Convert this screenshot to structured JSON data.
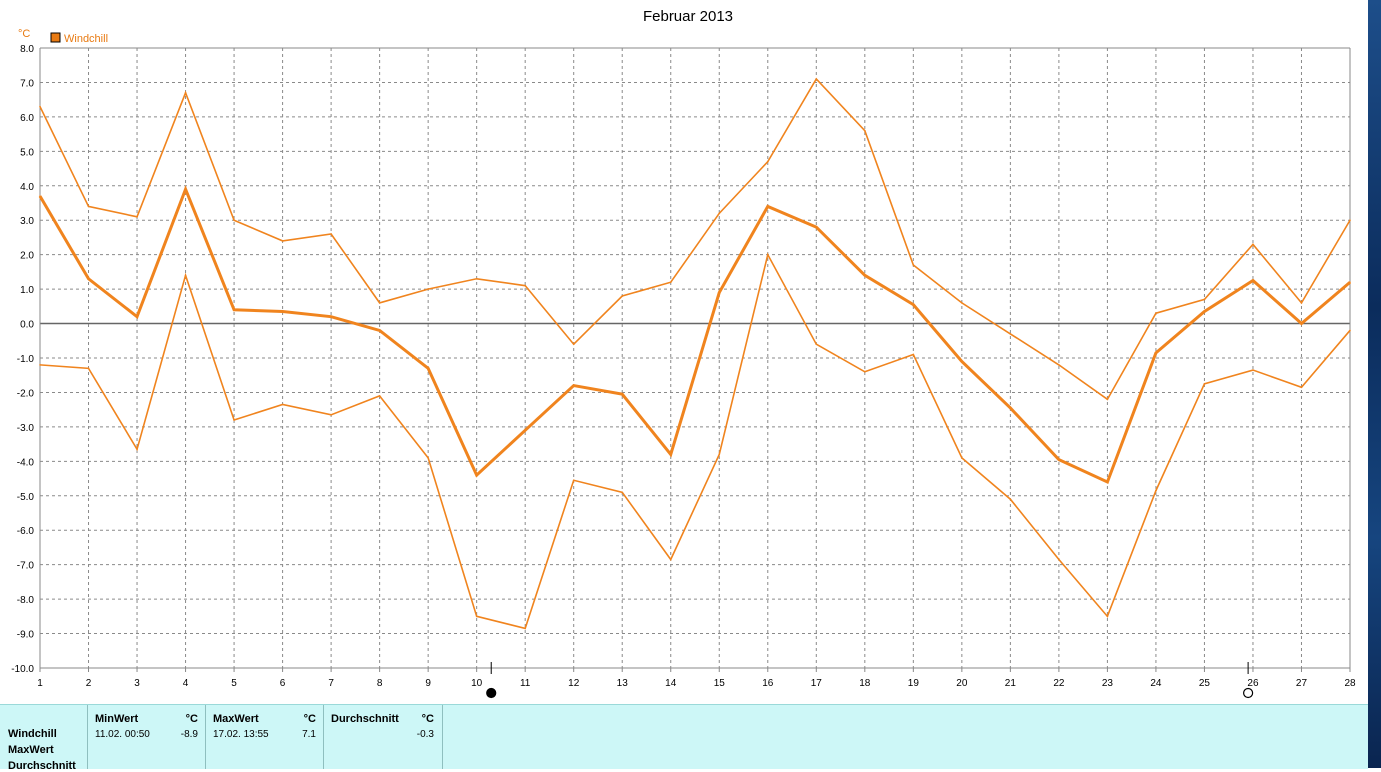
{
  "chart_data": {
    "type": "line",
    "title": "Februar 2013",
    "ylabel": "°C",
    "xlabel": "",
    "ylim": [
      -10.0,
      8.0
    ],
    "yticks": [
      "8.0",
      "7.0",
      "6.0",
      "5.0",
      "4.0",
      "3.0",
      "2.0",
      "1.0",
      "0.0",
      "-1.0",
      "-2.0",
      "-3.0",
      "-4.0",
      "-5.0",
      "-6.0",
      "-7.0",
      "-8.0",
      "-9.0",
      "-10.0"
    ],
    "x": [
      1,
      2,
      3,
      4,
      5,
      6,
      7,
      8,
      9,
      10,
      11,
      12,
      13,
      14,
      15,
      16,
      17,
      18,
      19,
      20,
      21,
      22,
      23,
      24,
      25,
      26,
      27,
      28
    ],
    "legend": "Windchill",
    "legend_position": "top-left",
    "grid": true,
    "series": [
      {
        "role": "max",
        "values": [
          6.3,
          3.4,
          3.1,
          6.7,
          3.0,
          2.4,
          2.6,
          0.6,
          1.0,
          1.3,
          1.1,
          -0.6,
          0.8,
          1.2,
          3.2,
          4.7,
          7.1,
          5.6,
          1.7,
          0.6,
          -0.3,
          -1.2,
          -2.2,
          0.3,
          0.7,
          2.3,
          0.6,
          3.0
        ]
      },
      {
        "role": "avg",
        "values": [
          3.7,
          1.3,
          0.2,
          3.9,
          0.4,
          0.35,
          0.2,
          -0.2,
          -1.3,
          -4.4,
          -3.1,
          -1.8,
          -2.05,
          -3.8,
          0.9,
          3.4,
          2.8,
          1.4,
          0.55,
          -1.1,
          -2.45,
          -3.95,
          -4.6,
          -0.85,
          0.35,
          1.25,
          0.0,
          1.2
        ]
      },
      {
        "role": "min",
        "values": [
          -1.2,
          -1.3,
          -3.65,
          1.4,
          -2.8,
          -2.35,
          -2.65,
          -2.1,
          -3.9,
          -8.5,
          -8.85,
          -4.55,
          -4.9,
          -6.85,
          -3.8,
          2.0,
          -0.6,
          -1.4,
          -0.9,
          -3.9,
          -5.1,
          -6.85,
          -8.5,
          -4.85,
          -1.75,
          -1.35,
          -1.85,
          -0.2
        ]
      }
    ],
    "markers": [
      {
        "symbol": "new-moon",
        "x": 10.3
      },
      {
        "symbol": "full-moon",
        "x": 25.9
      }
    ]
  },
  "stats": {
    "rows": [
      "Windchill",
      "MaxWert",
      "Durchschnitt"
    ],
    "min": {
      "label": "MinWert",
      "unit": "°C",
      "datetime": "11.02.  00:50",
      "value": "-8.9"
    },
    "max": {
      "label": "MaxWert",
      "unit": "°C",
      "datetime": "17.02.  13:55",
      "value": "7.1"
    },
    "avg": {
      "label": "Durchschnitt",
      "unit": "°C",
      "value": "-0.3"
    }
  },
  "colors": {
    "series": "#f0841e",
    "legend_box": "#e87a12",
    "grid": "#8a8a8a",
    "zero_line": "#666666",
    "axis": "#888888",
    "panel": "#cdf7f7"
  }
}
